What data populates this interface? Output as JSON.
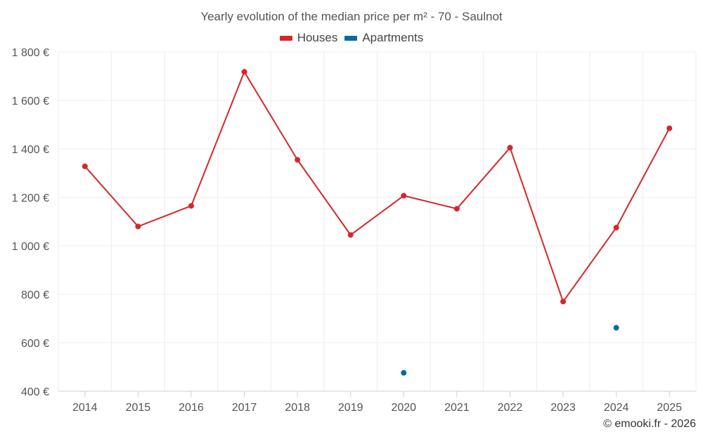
{
  "chart_data": {
    "type": "line",
    "title": "Yearly evolution of the median price per m² - 70 - Saulnot",
    "categories": [
      "2014",
      "2015",
      "2016",
      "2017",
      "2018",
      "2019",
      "2020",
      "2021",
      "2022",
      "2023",
      "2024",
      "2025"
    ],
    "series": [
      {
        "name": "Houses",
        "color": "#d7262b",
        "values": [
          1328,
          1080,
          1165,
          1718,
          1355,
          1045,
          1207,
          1153,
          1405,
          770,
          1075,
          1485
        ]
      },
      {
        "name": "Apartments",
        "color": "#0b6aa2",
        "values": [
          null,
          null,
          null,
          null,
          null,
          null,
          476,
          null,
          null,
          null,
          662,
          null
        ]
      }
    ],
    "ylim": [
      400,
      1800
    ],
    "yticks": [
      400,
      600,
      800,
      1000,
      1200,
      1400,
      1600,
      1800
    ],
    "ytick_labels": [
      "400 €",
      "600 €",
      "800 €",
      "1 000 €",
      "1 200 €",
      "1 400 €",
      "1 600 €",
      "1 800 €"
    ],
    "xlabel": "",
    "ylabel": "",
    "grid": true,
    "legend_position": "top-center"
  },
  "credit": "© emooki.fr - 2026"
}
